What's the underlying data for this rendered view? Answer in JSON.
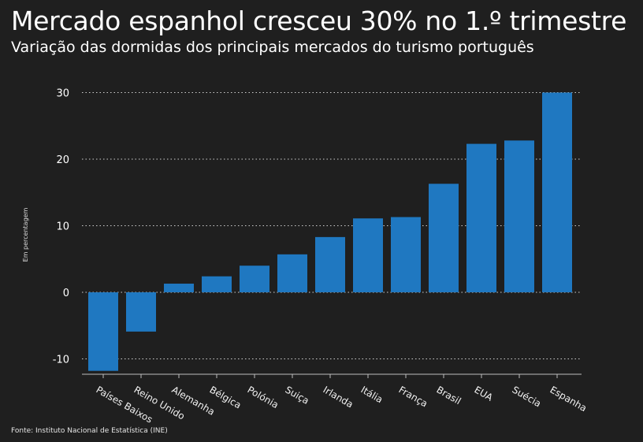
{
  "chart_data": {
    "type": "bar",
    "title": "Mercado espanhol cresceu 30% no 1.º trimestre",
    "subtitle": "Variação das dormidas dos principais mercados do turismo português",
    "ylabel": "Em percentagem",
    "xlabel": "",
    "ylim": [
      -12,
      30
    ],
    "yticks": [
      30,
      20,
      10,
      0,
      -10
    ],
    "grid": true,
    "categories": [
      "Países Baixos",
      "Reino Unido",
      "Alemanha",
      "Bélgica",
      "Polónia",
      "Suiça",
      "Irlanda",
      "Itália",
      "França",
      "Brasil",
      "EUA",
      "Suécia",
      "Espanha"
    ],
    "values": [
      -11.8,
      -5.9,
      1.3,
      2.4,
      4.0,
      5.7,
      8.3,
      11.1,
      11.3,
      16.3,
      22.3,
      22.8,
      30.0
    ],
    "bar_color": "#1f78c1",
    "grid_color": "#cfcfcf"
  },
  "source": "Fonte: Instituto Nacional de Estatística (INE)"
}
